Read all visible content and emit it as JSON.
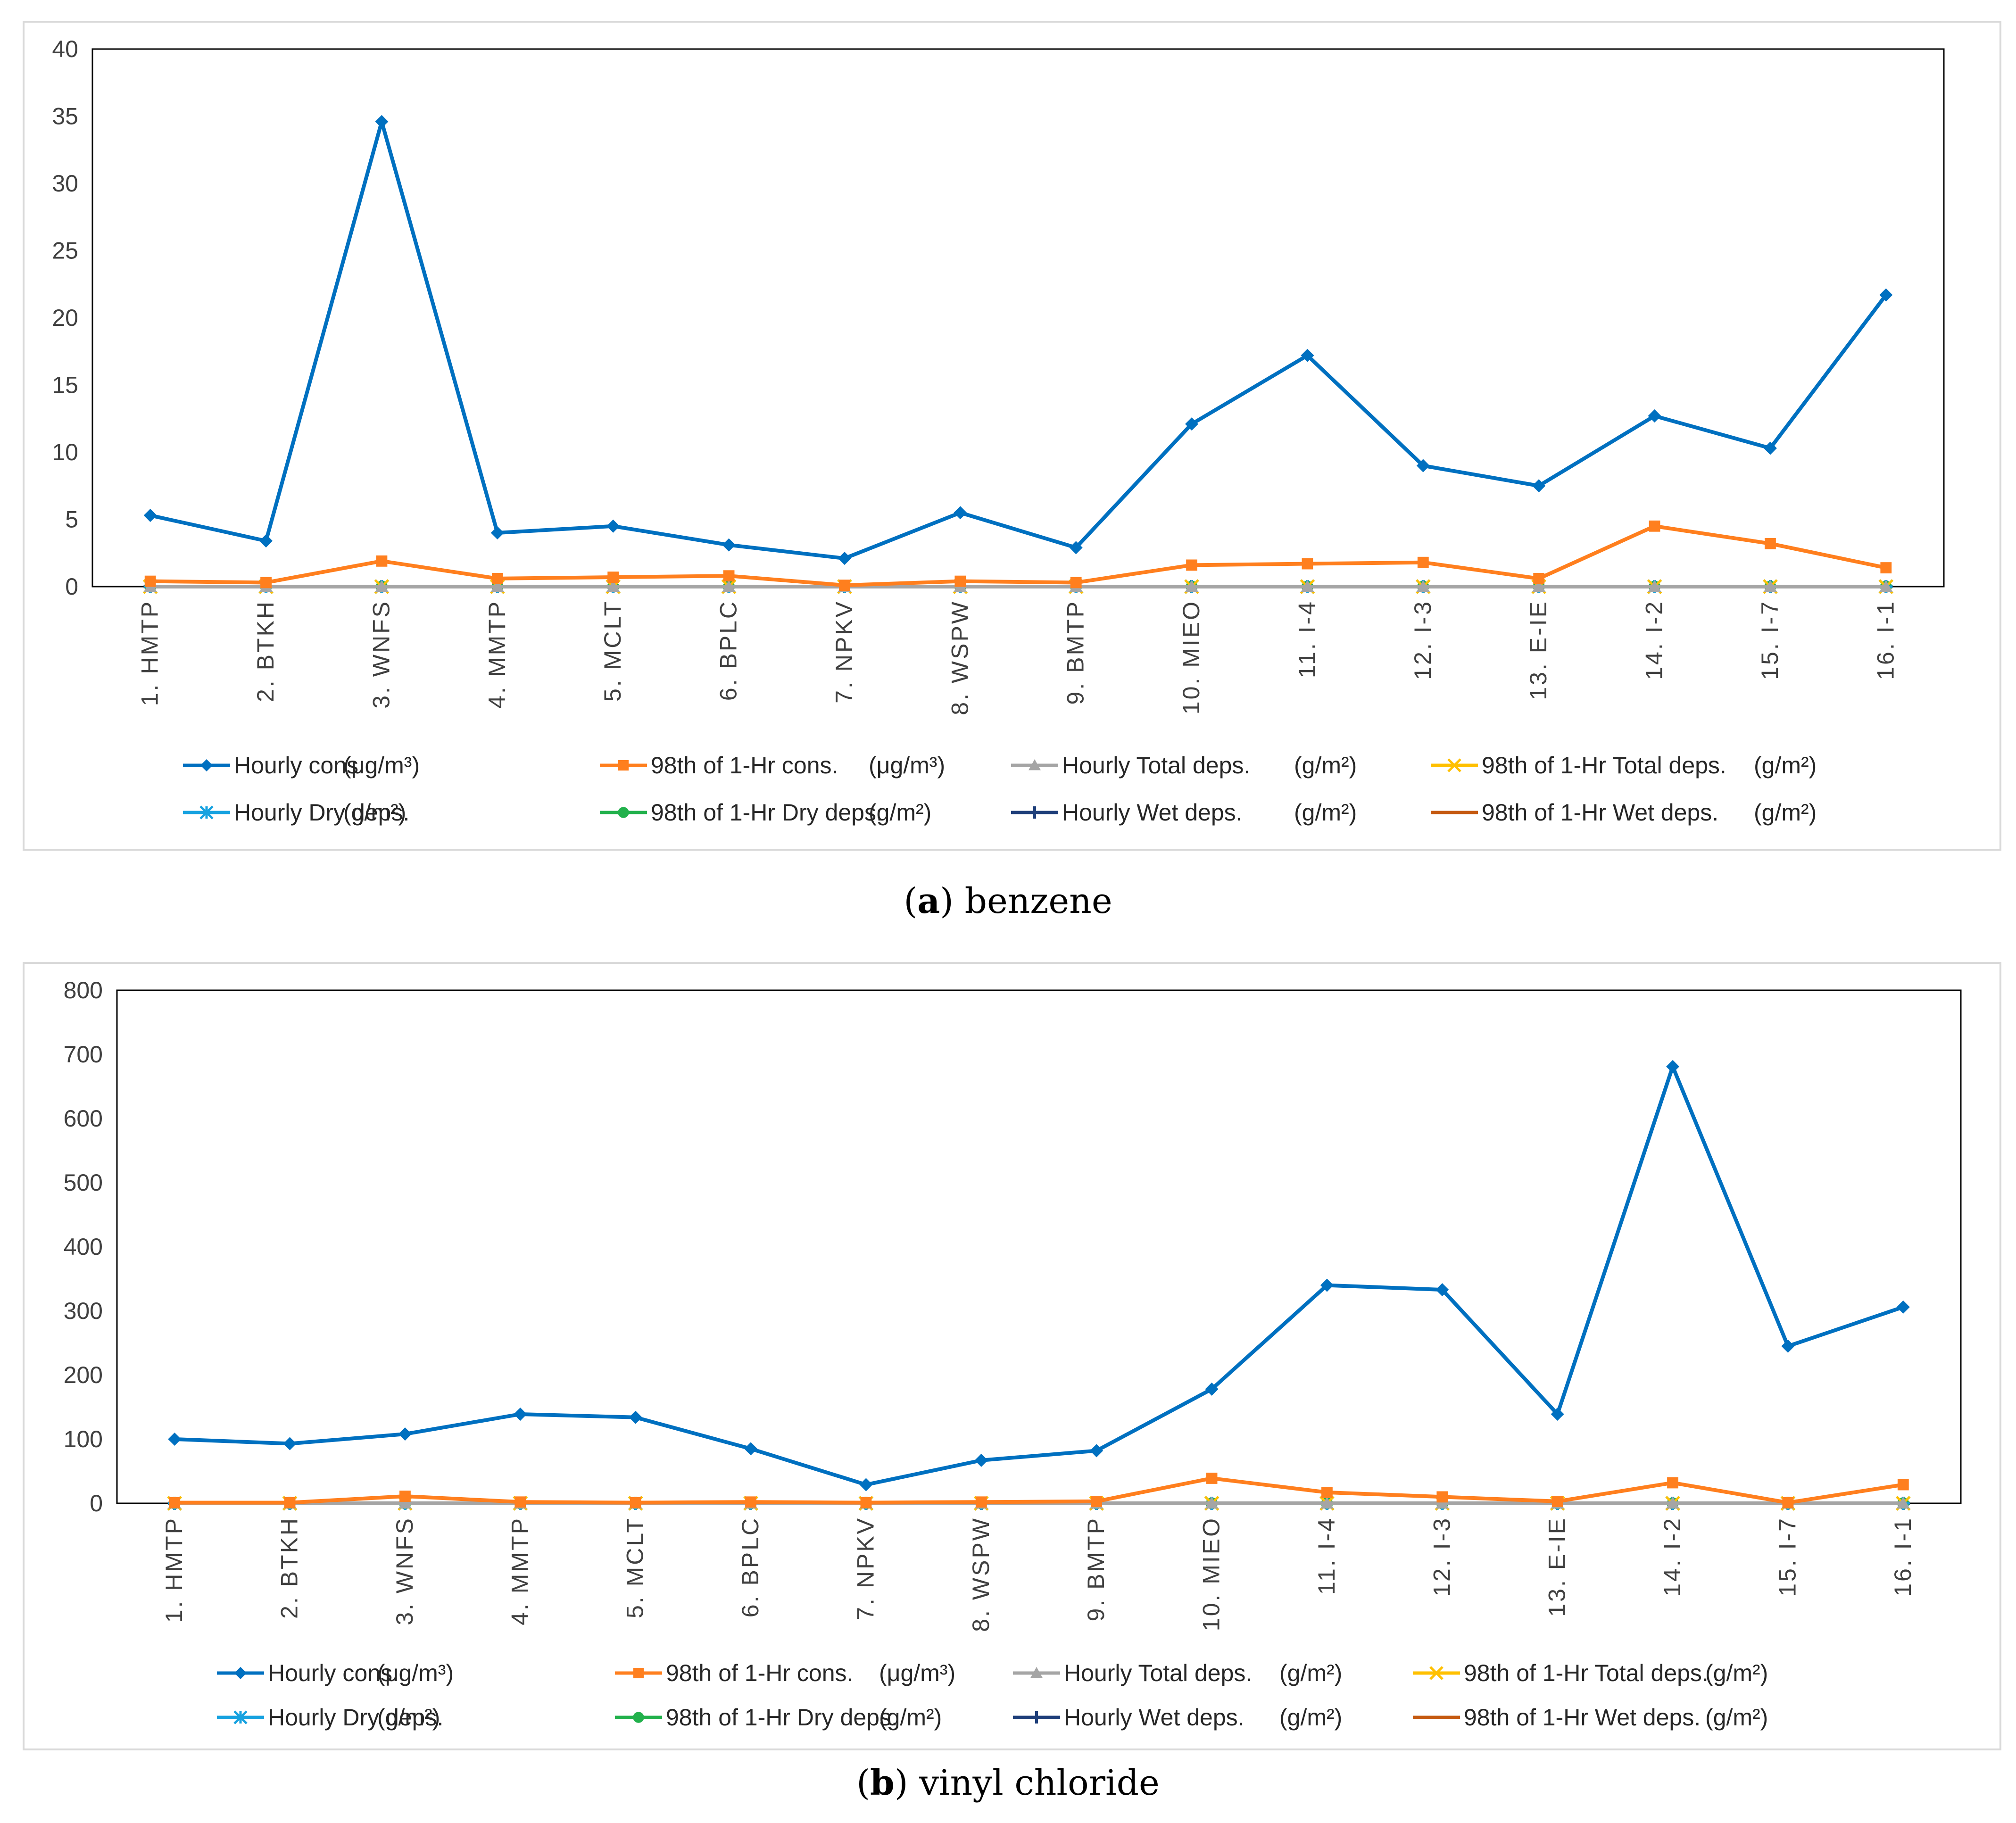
{
  "chart_data": [
    {
      "type": "line",
      "caption_letter": "a",
      "caption_text": "benzene",
      "ylim": [
        0,
        40
      ],
      "yticks": [
        0,
        5,
        10,
        15,
        20,
        25,
        30,
        35,
        40
      ],
      "categories": [
        "1. HMTP",
        "2. BTKH",
        "3. WNFS",
        "4. MMTP",
        "5. MCLT",
        "6. BPLC",
        "7. NPKV",
        "8. WSPW",
        "9. BMTP",
        "10. MIEO",
        "11. I-4",
        "12. I-3",
        "13. E-IE",
        "14. I-2",
        "15. I-7",
        "16. I-1"
      ],
      "series": [
        {
          "name": "Hourly cons.",
          "unit": "(μg/m³)",
          "color": "#0070c0",
          "marker": "diamond",
          "values": [
            5.3,
            3.4,
            34.6,
            4.0,
            4.5,
            3.1,
            2.1,
            5.5,
            2.9,
            12.1,
            17.2,
            9.0,
            7.5,
            12.7,
            10.3,
            21.7
          ]
        },
        {
          "name": "98th of 1-Hr cons.",
          "unit": "(μg/m³)",
          "color": "#ff7f1e",
          "marker": "square",
          "values": [
            0.4,
            0.3,
            1.9,
            0.6,
            0.7,
            0.8,
            0.1,
            0.4,
            0.3,
            1.6,
            1.7,
            1.8,
            0.6,
            4.5,
            3.2,
            1.4
          ]
        },
        {
          "name": "Hourly Total deps.",
          "unit": "(g/m²)",
          "color": "#a5a5a5",
          "marker": "triangle",
          "values": [
            0,
            0,
            0,
            0,
            0,
            0,
            0,
            0,
            0,
            0,
            0,
            0,
            0,
            0,
            0,
            0
          ]
        },
        {
          "name": "98th of 1-Hr Total deps.",
          "unit": "(g/m²)",
          "color": "#ffc000",
          "marker": "x",
          "values": [
            0,
            0,
            0,
            0,
            0,
            0,
            0,
            0,
            0,
            0,
            0,
            0,
            0,
            0,
            0,
            0
          ]
        },
        {
          "name": "Hourly Dry deps.",
          "unit": "(g/m²)",
          "color": "#17a2e0",
          "marker": "star",
          "values": [
            0,
            0,
            0,
            0,
            0,
            0,
            0,
            0,
            0,
            0,
            0,
            0,
            0,
            0,
            0,
            0
          ]
        },
        {
          "name": "98th of 1-Hr Dry deps.",
          "unit": "(g/m²)",
          "color": "#22b14c",
          "marker": "circle",
          "values": [
            0,
            0,
            0,
            0,
            0,
            0,
            0,
            0,
            0,
            0,
            0,
            0,
            0,
            0,
            0,
            0
          ]
        },
        {
          "name": "Hourly Wet deps.",
          "unit": "(g/m²)",
          "color": "#1f3f7a",
          "marker": "plus",
          "values": [
            0,
            0,
            0,
            0,
            0,
            0,
            0,
            0,
            0,
            0,
            0,
            0,
            0,
            0,
            0,
            0
          ]
        },
        {
          "name": "98th of 1-Hr Wet deps.",
          "unit": "(g/m²)",
          "color": "#c55a11",
          "marker": "dash",
          "values": [
            0,
            0,
            0,
            0,
            0,
            0,
            0,
            0,
            0,
            0,
            0,
            0,
            0,
            0,
            0,
            0
          ]
        }
      ]
    },
    {
      "type": "line",
      "caption_letter": "b",
      "caption_text": "vinyl chloride",
      "ylim": [
        0,
        800
      ],
      "yticks": [
        0,
        100,
        200,
        300,
        400,
        500,
        600,
        700,
        800
      ],
      "categories": [
        "1. HMTP",
        "2. BTKH",
        "3. WNFS",
        "4. MMTP",
        "5. MCLT",
        "6. BPLC",
        "7. NPKV",
        "8. WSPW",
        "9. BMTP",
        "10. MIEO",
        "11. I-4",
        "12. I-3",
        "13. E-IE",
        "14. I-2",
        "15. I-7",
        "16. I-1"
      ],
      "series": [
        {
          "name": "Hourly cons.",
          "unit": "(μg/m³)",
          "color": "#0070c0",
          "marker": "diamond",
          "values": [
            100,
            93,
            108,
            139,
            134,
            85,
            29,
            67,
            82,
            178,
            340,
            333,
            139,
            681,
            245,
            306
          ]
        },
        {
          "name": "98th of 1-Hr cons.",
          "unit": "(μg/m³)",
          "color": "#ff7f1e",
          "marker": "square",
          "values": [
            1,
            1,
            11,
            2,
            1,
            2,
            1,
            2,
            3,
            39,
            17,
            10,
            3,
            32,
            1,
            29
          ]
        },
        {
          "name": "Hourly Total deps.",
          "unit": "(g/m²)",
          "color": "#a5a5a5",
          "marker": "triangle",
          "values": [
            0,
            0,
            0,
            0,
            0,
            0,
            0,
            0,
            0,
            0,
            0,
            0,
            0,
            0,
            0,
            0
          ]
        },
        {
          "name": "98th of 1-Hr Total deps.",
          "unit": "(g/m²)",
          "color": "#ffc000",
          "marker": "x",
          "values": [
            0,
            0,
            0,
            0,
            0,
            0,
            0,
            0,
            0,
            0,
            0,
            0,
            0,
            0,
            0,
            0
          ]
        },
        {
          "name": "Hourly Dry deps.",
          "unit": "(g/m²)",
          "color": "#17a2e0",
          "marker": "star",
          "values": [
            0,
            0,
            0,
            0,
            0,
            0,
            0,
            0,
            0,
            0,
            0,
            0,
            0,
            0,
            0,
            0
          ]
        },
        {
          "name": "98th of 1-Hr Dry deps.",
          "unit": "(g/m²)",
          "color": "#22b14c",
          "marker": "circle",
          "values": [
            0,
            0,
            0,
            0,
            0,
            0,
            0,
            0,
            0,
            0,
            0,
            0,
            0,
            0,
            0,
            0
          ]
        },
        {
          "name": "Hourly Wet deps.",
          "unit": "(g/m²)",
          "color": "#1f3f7a",
          "marker": "plus",
          "values": [
            0,
            0,
            0,
            0,
            0,
            0,
            0,
            0,
            0,
            0,
            0,
            0,
            0,
            0,
            0,
            0
          ]
        },
        {
          "name": "98th of 1-Hr Wet deps.",
          "unit": "(g/m²)",
          "color": "#c55a11",
          "marker": "dash",
          "values": [
            0,
            0,
            0,
            0,
            0,
            0,
            0,
            0,
            0,
            0,
            0,
            0,
            0,
            0,
            0,
            0
          ]
        }
      ]
    }
  ]
}
